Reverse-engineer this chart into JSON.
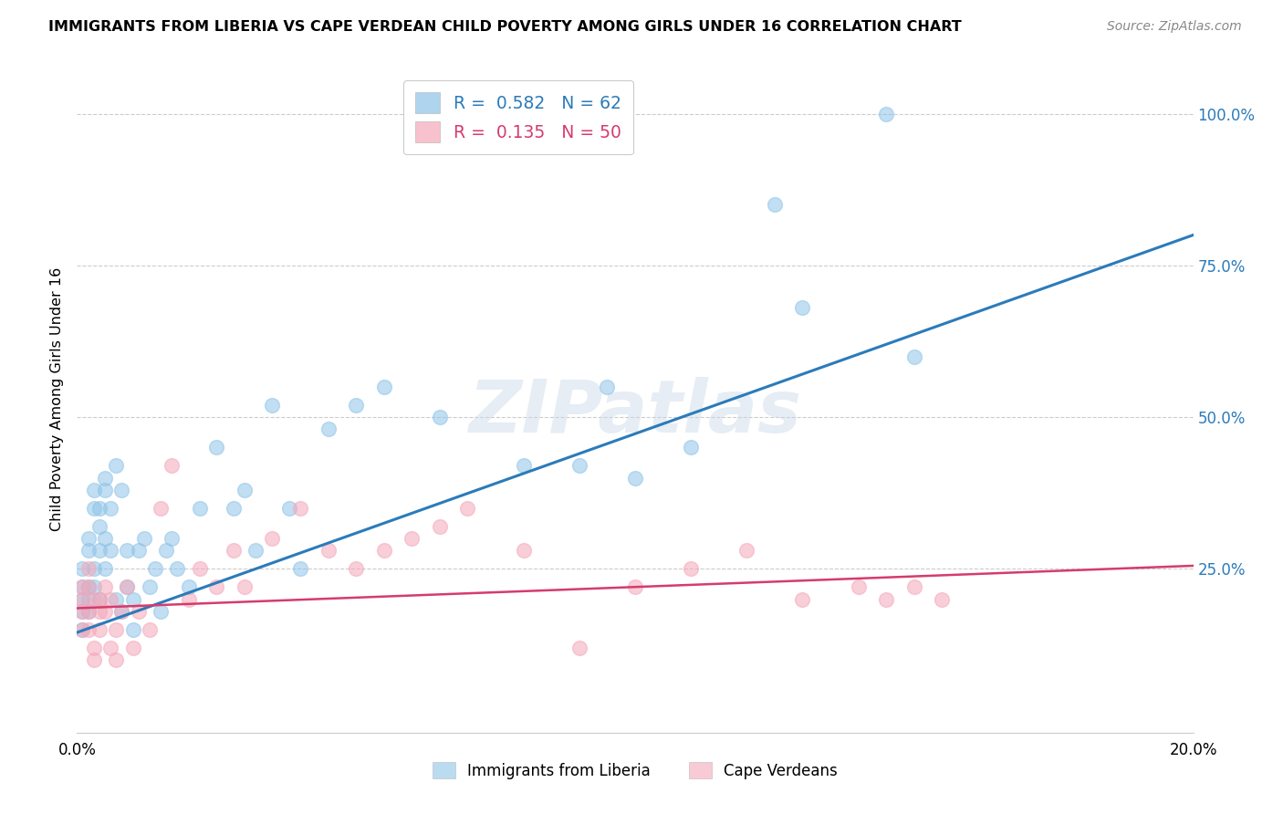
{
  "title": "IMMIGRANTS FROM LIBERIA VS CAPE VERDEAN CHILD POVERTY AMONG GIRLS UNDER 16 CORRELATION CHART",
  "source": "Source: ZipAtlas.com",
  "ylabel": "Child Poverty Among Girls Under 16",
  "xlim": [
    0.0,
    0.2
  ],
  "ylim": [
    -0.02,
    1.08
  ],
  "series1_label": "Immigrants from Liberia",
  "series2_label": "Cape Verdeans",
  "series1_color": "#8ec4e8",
  "series2_color": "#f4a7b9",
  "series1_line_color": "#2b7bba",
  "series2_line_color": "#d63b6e",
  "watermark": "ZIPatlas",
  "background_color": "#ffffff",
  "series1_R": 0.582,
  "series1_N": 62,
  "series2_R": 0.135,
  "series2_N": 50,
  "blue_line_x0": 0.0,
  "blue_line_y0": 0.145,
  "blue_line_x1": 0.2,
  "blue_line_y1": 0.8,
  "pink_line_x0": 0.0,
  "pink_line_y0": 0.185,
  "pink_line_x1": 0.2,
  "pink_line_y1": 0.255,
  "series1_x": [
    0.001,
    0.001,
    0.001,
    0.001,
    0.001,
    0.002,
    0.002,
    0.002,
    0.002,
    0.002,
    0.003,
    0.003,
    0.003,
    0.003,
    0.004,
    0.004,
    0.004,
    0.004,
    0.005,
    0.005,
    0.005,
    0.005,
    0.006,
    0.006,
    0.007,
    0.007,
    0.008,
    0.008,
    0.009,
    0.009,
    0.01,
    0.01,
    0.011,
    0.012,
    0.013,
    0.014,
    0.015,
    0.016,
    0.017,
    0.018,
    0.02,
    0.022,
    0.025,
    0.028,
    0.03,
    0.032,
    0.035,
    0.038,
    0.04,
    0.045,
    0.05,
    0.055,
    0.065,
    0.08,
    0.09,
    0.095,
    0.1,
    0.11,
    0.125,
    0.13,
    0.145,
    0.15
  ],
  "series1_y": [
    0.2,
    0.22,
    0.18,
    0.25,
    0.15,
    0.28,
    0.2,
    0.22,
    0.3,
    0.18,
    0.35,
    0.25,
    0.22,
    0.38,
    0.32,
    0.28,
    0.35,
    0.2,
    0.4,
    0.38,
    0.3,
    0.25,
    0.28,
    0.35,
    0.42,
    0.2,
    0.38,
    0.18,
    0.28,
    0.22,
    0.15,
    0.2,
    0.28,
    0.3,
    0.22,
    0.25,
    0.18,
    0.28,
    0.3,
    0.25,
    0.22,
    0.35,
    0.45,
    0.35,
    0.38,
    0.28,
    0.52,
    0.35,
    0.25,
    0.48,
    0.52,
    0.55,
    0.5,
    0.42,
    0.42,
    0.55,
    0.4,
    0.45,
    0.85,
    0.68,
    1.0,
    0.6
  ],
  "series2_x": [
    0.001,
    0.001,
    0.001,
    0.001,
    0.002,
    0.002,
    0.002,
    0.002,
    0.003,
    0.003,
    0.003,
    0.004,
    0.004,
    0.004,
    0.005,
    0.005,
    0.006,
    0.006,
    0.007,
    0.007,
    0.008,
    0.009,
    0.01,
    0.011,
    0.013,
    0.015,
    0.017,
    0.02,
    0.022,
    0.025,
    0.028,
    0.03,
    0.035,
    0.04,
    0.045,
    0.05,
    0.055,
    0.06,
    0.065,
    0.07,
    0.08,
    0.09,
    0.1,
    0.11,
    0.12,
    0.13,
    0.14,
    0.145,
    0.15,
    0.155
  ],
  "series2_y": [
    0.2,
    0.15,
    0.18,
    0.22,
    0.18,
    0.22,
    0.15,
    0.25,
    0.2,
    0.12,
    0.1,
    0.2,
    0.18,
    0.15,
    0.22,
    0.18,
    0.2,
    0.12,
    0.15,
    0.1,
    0.18,
    0.22,
    0.12,
    0.18,
    0.15,
    0.35,
    0.42,
    0.2,
    0.25,
    0.22,
    0.28,
    0.22,
    0.3,
    0.35,
    0.28,
    0.25,
    0.28,
    0.3,
    0.32,
    0.35,
    0.28,
    0.12,
    0.22,
    0.25,
    0.28,
    0.2,
    0.22,
    0.2,
    0.22,
    0.2
  ]
}
